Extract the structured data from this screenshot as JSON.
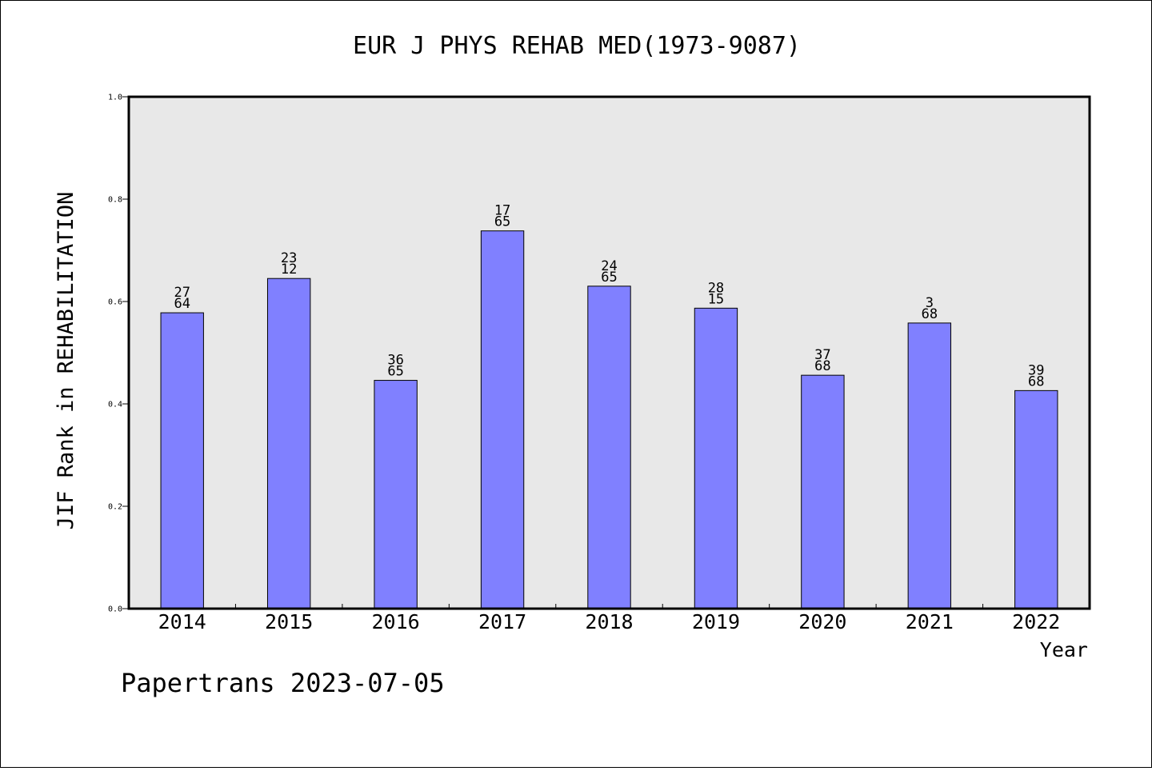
{
  "chart_data": {
    "type": "bar",
    "title": "EUR J PHYS REHAB MED(1973-9087)",
    "xlabel": "Year",
    "ylabel": "JIF Rank in REHABILITATION",
    "ylim": [
      0,
      1.0
    ],
    "yticks": [
      "0.0",
      "0.2",
      "0.4",
      "0.6",
      "0.8",
      "1.0"
    ],
    "categories": [
      "2014",
      "2015",
      "2016",
      "2017",
      "2018",
      "2019",
      "2020",
      "2021",
      "2022"
    ],
    "values": [
      0.578,
      0.645,
      0.446,
      0.738,
      0.63,
      0.587,
      0.456,
      0.558,
      0.426
    ],
    "labels": [
      [
        "27",
        "64"
      ],
      [
        "23",
        "12"
      ],
      [
        "36",
        "65"
      ],
      [
        "17",
        "65"
      ],
      [
        "24",
        "65"
      ],
      [
        "28",
        "15"
      ],
      [
        "37",
        "68"
      ],
      [
        "3",
        "68"
      ],
      [
        "39",
        "68"
      ]
    ],
    "bar_color": "#8080ff",
    "plot_background": "#e8e8e8",
    "grid": false,
    "legend": false
  },
  "footer": "Papertrans 2023-07-05"
}
